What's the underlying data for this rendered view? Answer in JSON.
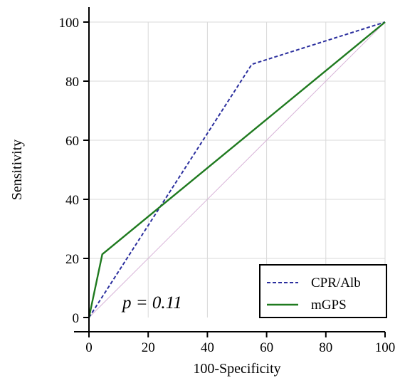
{
  "chart_data": {
    "type": "line",
    "xlabel": "100-Specificity",
    "ylabel": "Sensitivity",
    "xlim": [
      0,
      100
    ],
    "ylim": [
      0,
      100
    ],
    "xticks": [
      0,
      20,
      40,
      60,
      80,
      100
    ],
    "yticks": [
      0,
      20,
      40,
      60,
      80,
      100
    ],
    "grid": true,
    "legend_position": "bottom-right",
    "annotation": "p = 0.11",
    "reference_line": {
      "x": [
        0,
        100
      ],
      "y": [
        0,
        100
      ],
      "color": "#d8b4d8"
    },
    "series": [
      {
        "name": "CPR/Alb",
        "style": "dashed",
        "color": "#2b2f9e",
        "x": [
          0,
          55,
          100
        ],
        "y": [
          0,
          85.7,
          100
        ]
      },
      {
        "name": "mGPS",
        "style": "solid",
        "color": "#1f7a1f",
        "x": [
          0,
          4.5,
          100
        ],
        "y": [
          0,
          21.4,
          100
        ]
      }
    ]
  }
}
